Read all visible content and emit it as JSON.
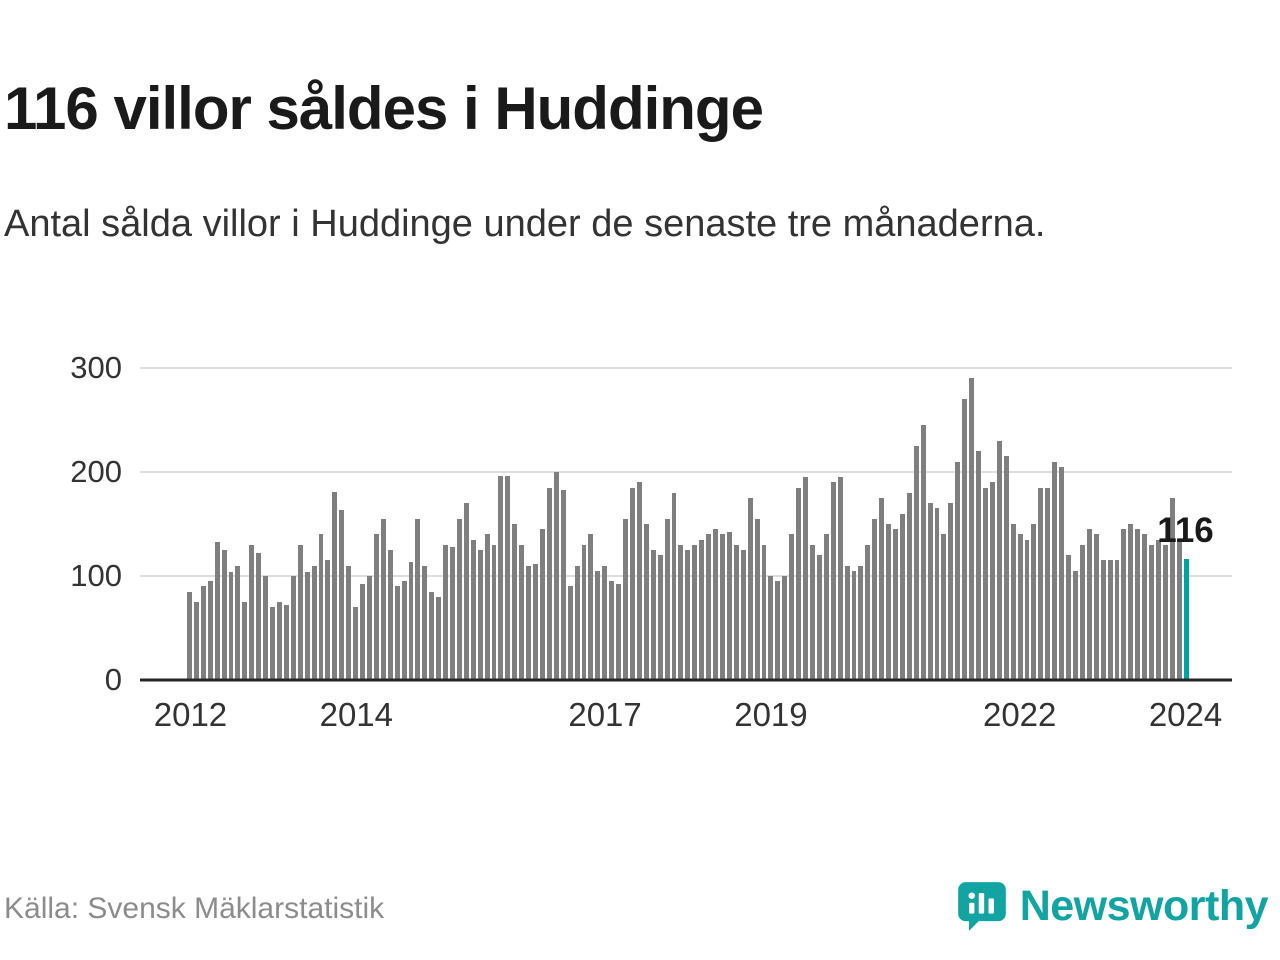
{
  "title": "116 villor såldes i Huddinge",
  "subtitle": "Antal sålda villor i Huddinge under de senaste tre månaderna.",
  "source": "Källa: Svensk Mäklarstatistik",
  "brand": {
    "name": "Newsworthy",
    "color": "#12a3a3",
    "icon": "speech-bubble-bar-chart-icon"
  },
  "colors": {
    "bar": "#7f7f7f",
    "highlight": "#00a2a2",
    "gridline": "#dddddd",
    "axis_line": "#262626",
    "text": "#1a1a1a"
  },
  "chart_data": {
    "type": "bar",
    "title": "116 villor såldes i Huddinge",
    "subtitle": "Antal sålda villor i Huddinge under de senaste tre månaderna.",
    "xlabel": "",
    "ylabel": "",
    "ylim": [
      0,
      300
    ],
    "yticks": [
      0,
      100,
      200,
      300
    ],
    "xticks": [
      "2012",
      "2014",
      "2017",
      "2019",
      "2022",
      "2024"
    ],
    "start_year": 2012,
    "frequency": "monthly",
    "grid": true,
    "legend": false,
    "annotation": "116",
    "highlight_last": true,
    "last_value": 116,
    "values": [
      85,
      75,
      90,
      95,
      133,
      125,
      104,
      110,
      75,
      130,
      122,
      100,
      70,
      75,
      72,
      100,
      130,
      104,
      110,
      140,
      115,
      181,
      163,
      110,
      70,
      92,
      100,
      140,
      155,
      125,
      90,
      95,
      113,
      155,
      110,
      85,
      80,
      130,
      128,
      155,
      170,
      135,
      125,
      140,
      130,
      196,
      196,
      150,
      130,
      110,
      112,
      145,
      185,
      200,
      183,
      90,
      110,
      130,
      140,
      105,
      110,
      95,
      92,
      155,
      185,
      190,
      150,
      125,
      120,
      155,
      180,
      130,
      125,
      130,
      135,
      140,
      145,
      140,
      142,
      130,
      125,
      175,
      155,
      130,
      100,
      95,
      100,
      140,
      185,
      195,
      130,
      120,
      140,
      190,
      195,
      110,
      105,
      110,
      130,
      155,
      175,
      150,
      145,
      160,
      180,
      225,
      245,
      170,
      165,
      140,
      170,
      210,
      270,
      290,
      220,
      185,
      190,
      230,
      215,
      150,
      140,
      135,
      150,
      185,
      185,
      210,
      205,
      120,
      105,
      130,
      145,
      140,
      115,
      115,
      115,
      145,
      150,
      145,
      140,
      130,
      135,
      130,
      175,
      135,
      116
    ]
  }
}
